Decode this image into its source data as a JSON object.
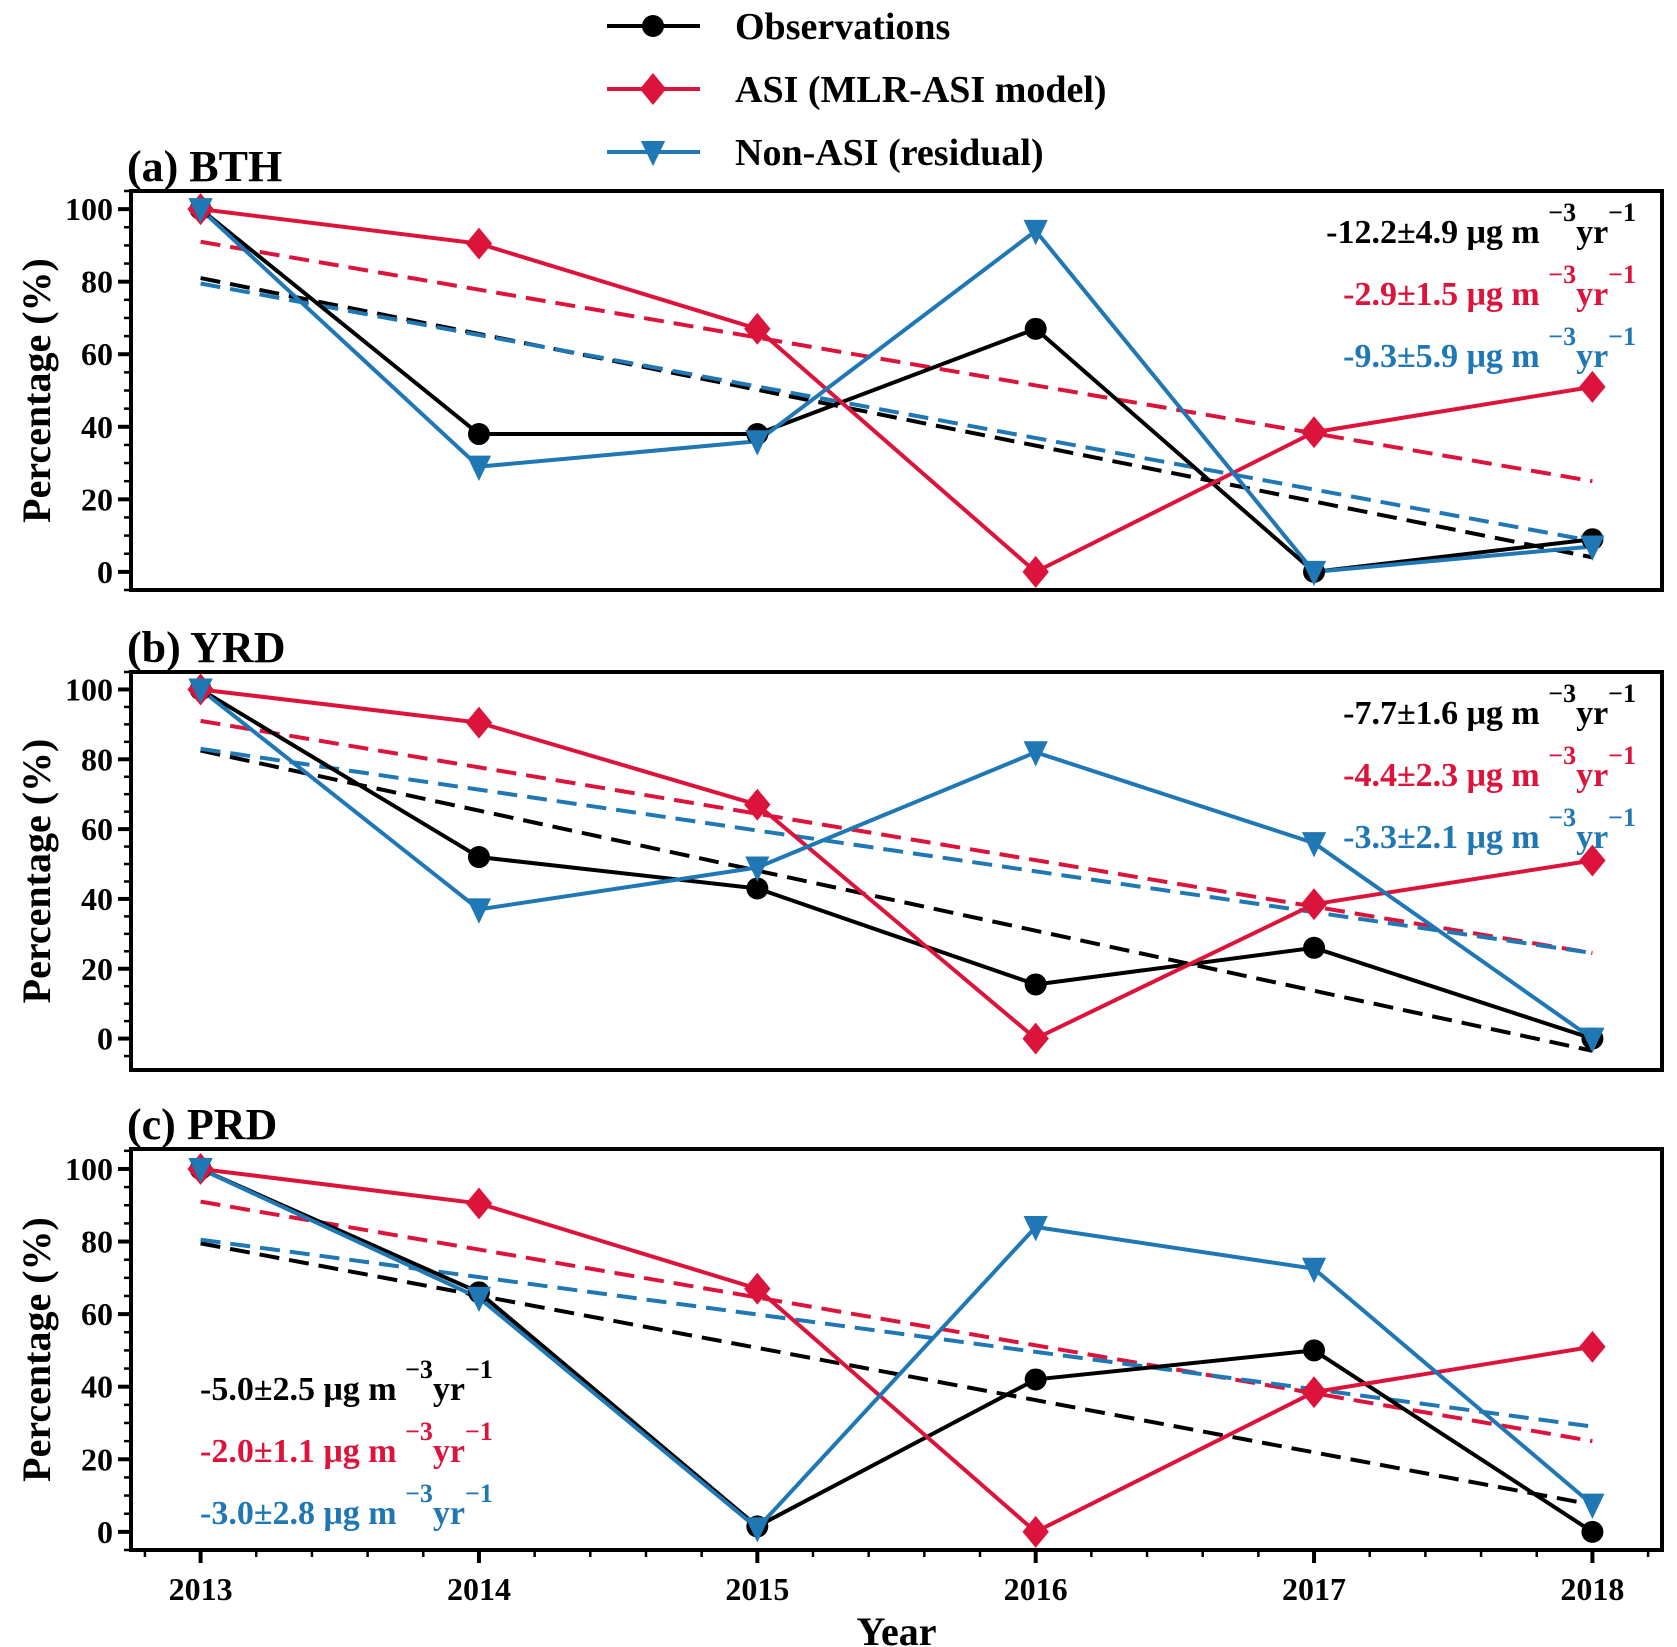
{
  "legend": {
    "items": [
      {
        "label": "Observations",
        "color": "#000000",
        "marker": "circle"
      },
      {
        "label": "ASI (MLR-ASI model)",
        "color": "#dc143c",
        "marker": "diamond"
      },
      {
        "label": "Non-ASI (residual)",
        "color": "#1f77b4",
        "marker": "triangle-down"
      }
    ]
  },
  "chart_data": [
    {
      "type": "line",
      "title": "(a) BTH",
      "xlabel": "",
      "ylabel": "Percentage (%)",
      "x": [
        2013,
        2014,
        2015,
        2016,
        2017,
        2018
      ],
      "xlim": [
        2012.75,
        2018.25
      ],
      "ylim": [
        -5,
        105
      ],
      "yticks": [
        0,
        20,
        40,
        60,
        80,
        100
      ],
      "show_xticklabels": false,
      "series": [
        {
          "name": "Observations",
          "color": "#000000",
          "marker": "circle",
          "values": [
            100,
            38,
            38,
            67,
            0,
            9
          ],
          "trend": [
            81,
            4
          ]
        },
        {
          "name": "ASI (MLR-ASI model)",
          "color": "#dc143c",
          "marker": "diamond",
          "values": [
            100,
            90.5,
            67,
            0,
            38.5,
            51
          ],
          "trend": [
            91,
            25
          ]
        },
        {
          "name": "Non-ASI (residual)",
          "color": "#1f77b4",
          "marker": "triangle-down",
          "values": [
            100,
            29,
            36,
            94,
            0,
            7
          ],
          "trend": [
            79.5,
            8.5
          ]
        }
      ],
      "annotations": {
        "position": "top-right",
        "lines": [
          {
            "text": "-12.2±4.9 μg m",
            "sup1": "−3",
            "mid": "yr",
            "sup2": "−1",
            "color": "#000000"
          },
          {
            "text": "-2.9±1.5 μg m",
            "sup1": "−3",
            "mid": "yr",
            "sup2": "−1",
            "color": "#dc143c"
          },
          {
            "text": "-9.3±5.9 μg m",
            "sup1": "−3",
            "mid": "yr",
            "sup2": "−1",
            "color": "#1f77b4"
          }
        ]
      }
    },
    {
      "type": "line",
      "title": "(b) YRD",
      "xlabel": "",
      "ylabel": "Percentage (%)",
      "x": [
        2013,
        2014,
        2015,
        2016,
        2017,
        2018
      ],
      "xlim": [
        2012.75,
        2018.25
      ],
      "ylim": [
        -9,
        105
      ],
      "yticks": [
        0,
        20,
        40,
        60,
        80,
        100
      ],
      "show_xticklabels": false,
      "series": [
        {
          "name": "Observations",
          "color": "#000000",
          "marker": "circle",
          "values": [
            100,
            52,
            43,
            15.5,
            26,
            0
          ],
          "trend": [
            82.5,
            -3.5
          ]
        },
        {
          "name": "ASI (MLR-ASI model)",
          "color": "#dc143c",
          "marker": "diamond",
          "values": [
            100,
            90.5,
            67,
            0,
            38.5,
            51
          ],
          "trend": [
            91,
            24.5
          ]
        },
        {
          "name": "Non-ASI (residual)",
          "color": "#1f77b4",
          "marker": "triangle-down",
          "values": [
            100,
            37,
            49,
            82,
            56,
            0
          ],
          "trend": [
            83,
            24.5
          ]
        }
      ],
      "annotations": {
        "position": "top-right",
        "lines": [
          {
            "text": "-7.7±1.6 μg m",
            "sup1": "−3",
            "mid": "yr",
            "sup2": "−1",
            "color": "#000000"
          },
          {
            "text": "-4.4±2.3 μg m",
            "sup1": "−3",
            "mid": "yr",
            "sup2": "−1",
            "color": "#dc143c"
          },
          {
            "text": "-3.3±2.1 μg m",
            "sup1": "−3",
            "mid": "yr",
            "sup2": "−1",
            "color": "#1f77b4"
          }
        ]
      }
    },
    {
      "type": "line",
      "title": "(c) PRD",
      "xlabel": "Year",
      "ylabel": "Percentage (%)",
      "x": [
        2013,
        2014,
        2015,
        2016,
        2017,
        2018
      ],
      "xlim": [
        2012.75,
        2018.25
      ],
      "ylim": [
        -5,
        105.5
      ],
      "yticks": [
        0,
        20,
        40,
        60,
        80,
        100
      ],
      "xticks": [
        "2013",
        "2014",
        "2015",
        "2016",
        "2017",
        "2018"
      ],
      "show_xticklabels": true,
      "series": [
        {
          "name": "Observations",
          "color": "#000000",
          "marker": "circle",
          "values": [
            100,
            66,
            1.5,
            42,
            50,
            0
          ],
          "trend": [
            79.5,
            7.5
          ]
        },
        {
          "name": "ASI (MLR-ASI model)",
          "color": "#dc143c",
          "marker": "diamond",
          "values": [
            100,
            90.5,
            67,
            0,
            38.5,
            51
          ],
          "trend": [
            91,
            25
          ]
        },
        {
          "name": "Non-ASI (residual)",
          "color": "#1f77b4",
          "marker": "triangle-down",
          "values": [
            100,
            64.5,
            1,
            84,
            72.5,
            7.5
          ],
          "trend": [
            80.5,
            29
          ]
        }
      ],
      "annotations": {
        "position": "bottom-left",
        "lines": [
          {
            "text": "-5.0±2.5 μg m",
            "sup1": "−3",
            "mid": "yr",
            "sup2": "−1",
            "color": "#000000"
          },
          {
            "text": "-2.0±1.1 μg m",
            "sup1": "−3",
            "mid": "yr",
            "sup2": "−1",
            "color": "#dc143c"
          },
          {
            "text": "-3.0±2.8 μg m",
            "sup1": "−3",
            "mid": "yr",
            "sup2": "−1",
            "color": "#1f77b4"
          }
        ]
      }
    }
  ]
}
